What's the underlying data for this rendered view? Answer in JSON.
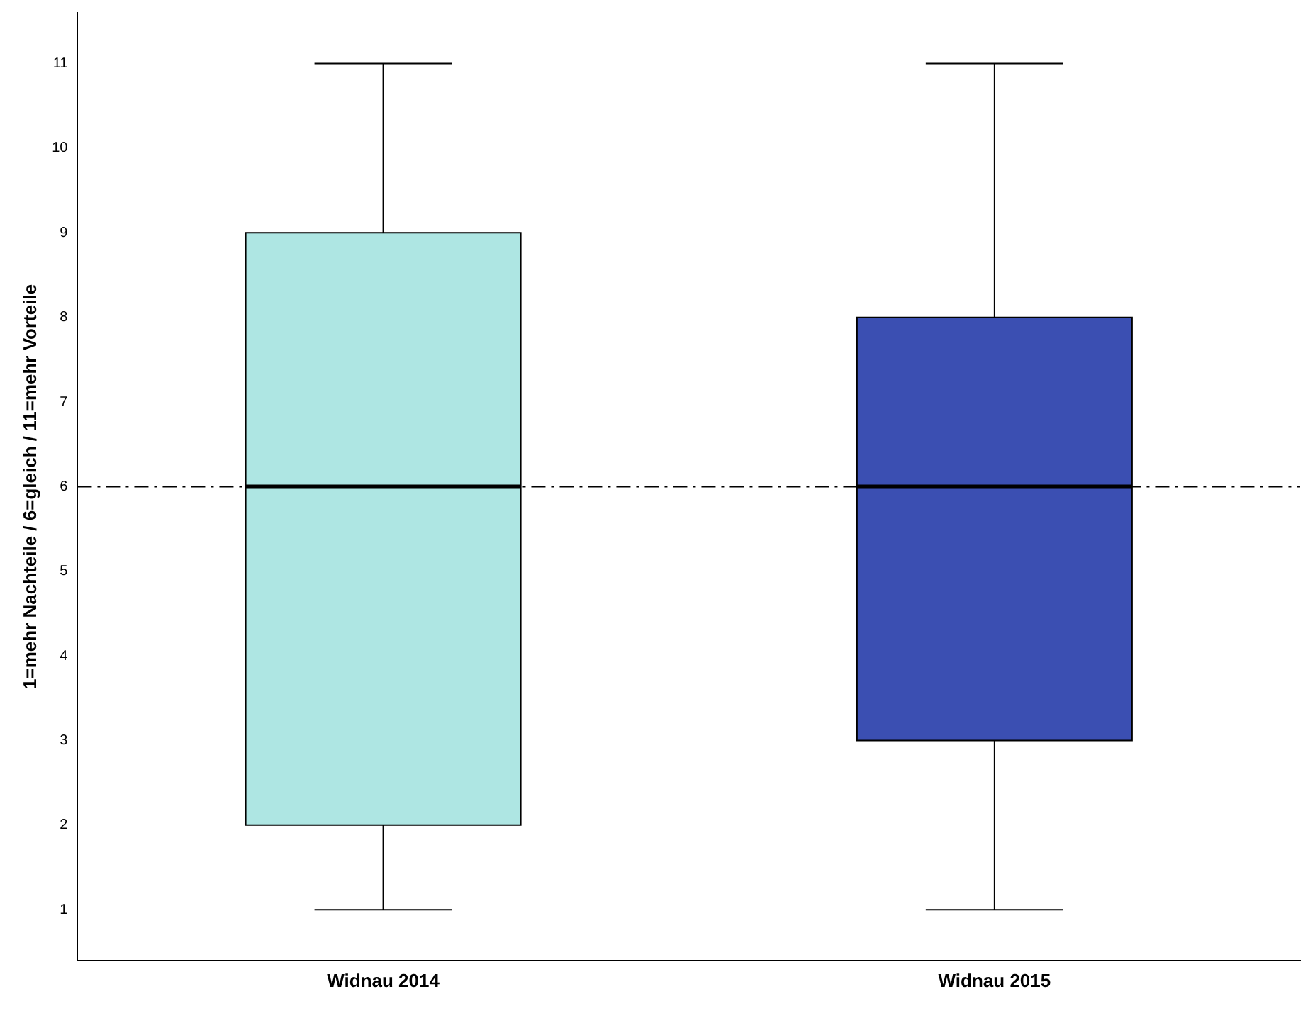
{
  "chart_data": {
    "type": "box",
    "ylabel": "1=mehr Nachteile / 6=gleich / 11=mehr Vorteile",
    "categories": [
      "Widnau 2014",
      "Widnau 2015"
    ],
    "colors": [
      "#aee6e3",
      "#3b4fb2"
    ],
    "boxes": [
      {
        "low": 1,
        "q1": 2,
        "median": 6,
        "q3": 9,
        "high": 11
      },
      {
        "low": 1,
        "q1": 3,
        "median": 6,
        "q3": 8,
        "high": 11
      }
    ],
    "ylim": [
      0.4,
      11.6
    ],
    "yticks": [
      1,
      2,
      3,
      4,
      5,
      6,
      7,
      8,
      9,
      10,
      11
    ],
    "ref_lines": [
      {
        "axis": "y",
        "value": 6,
        "color": "#000000",
        "line_style": "dashed"
      }
    ],
    "grid": false,
    "legend": false
  }
}
